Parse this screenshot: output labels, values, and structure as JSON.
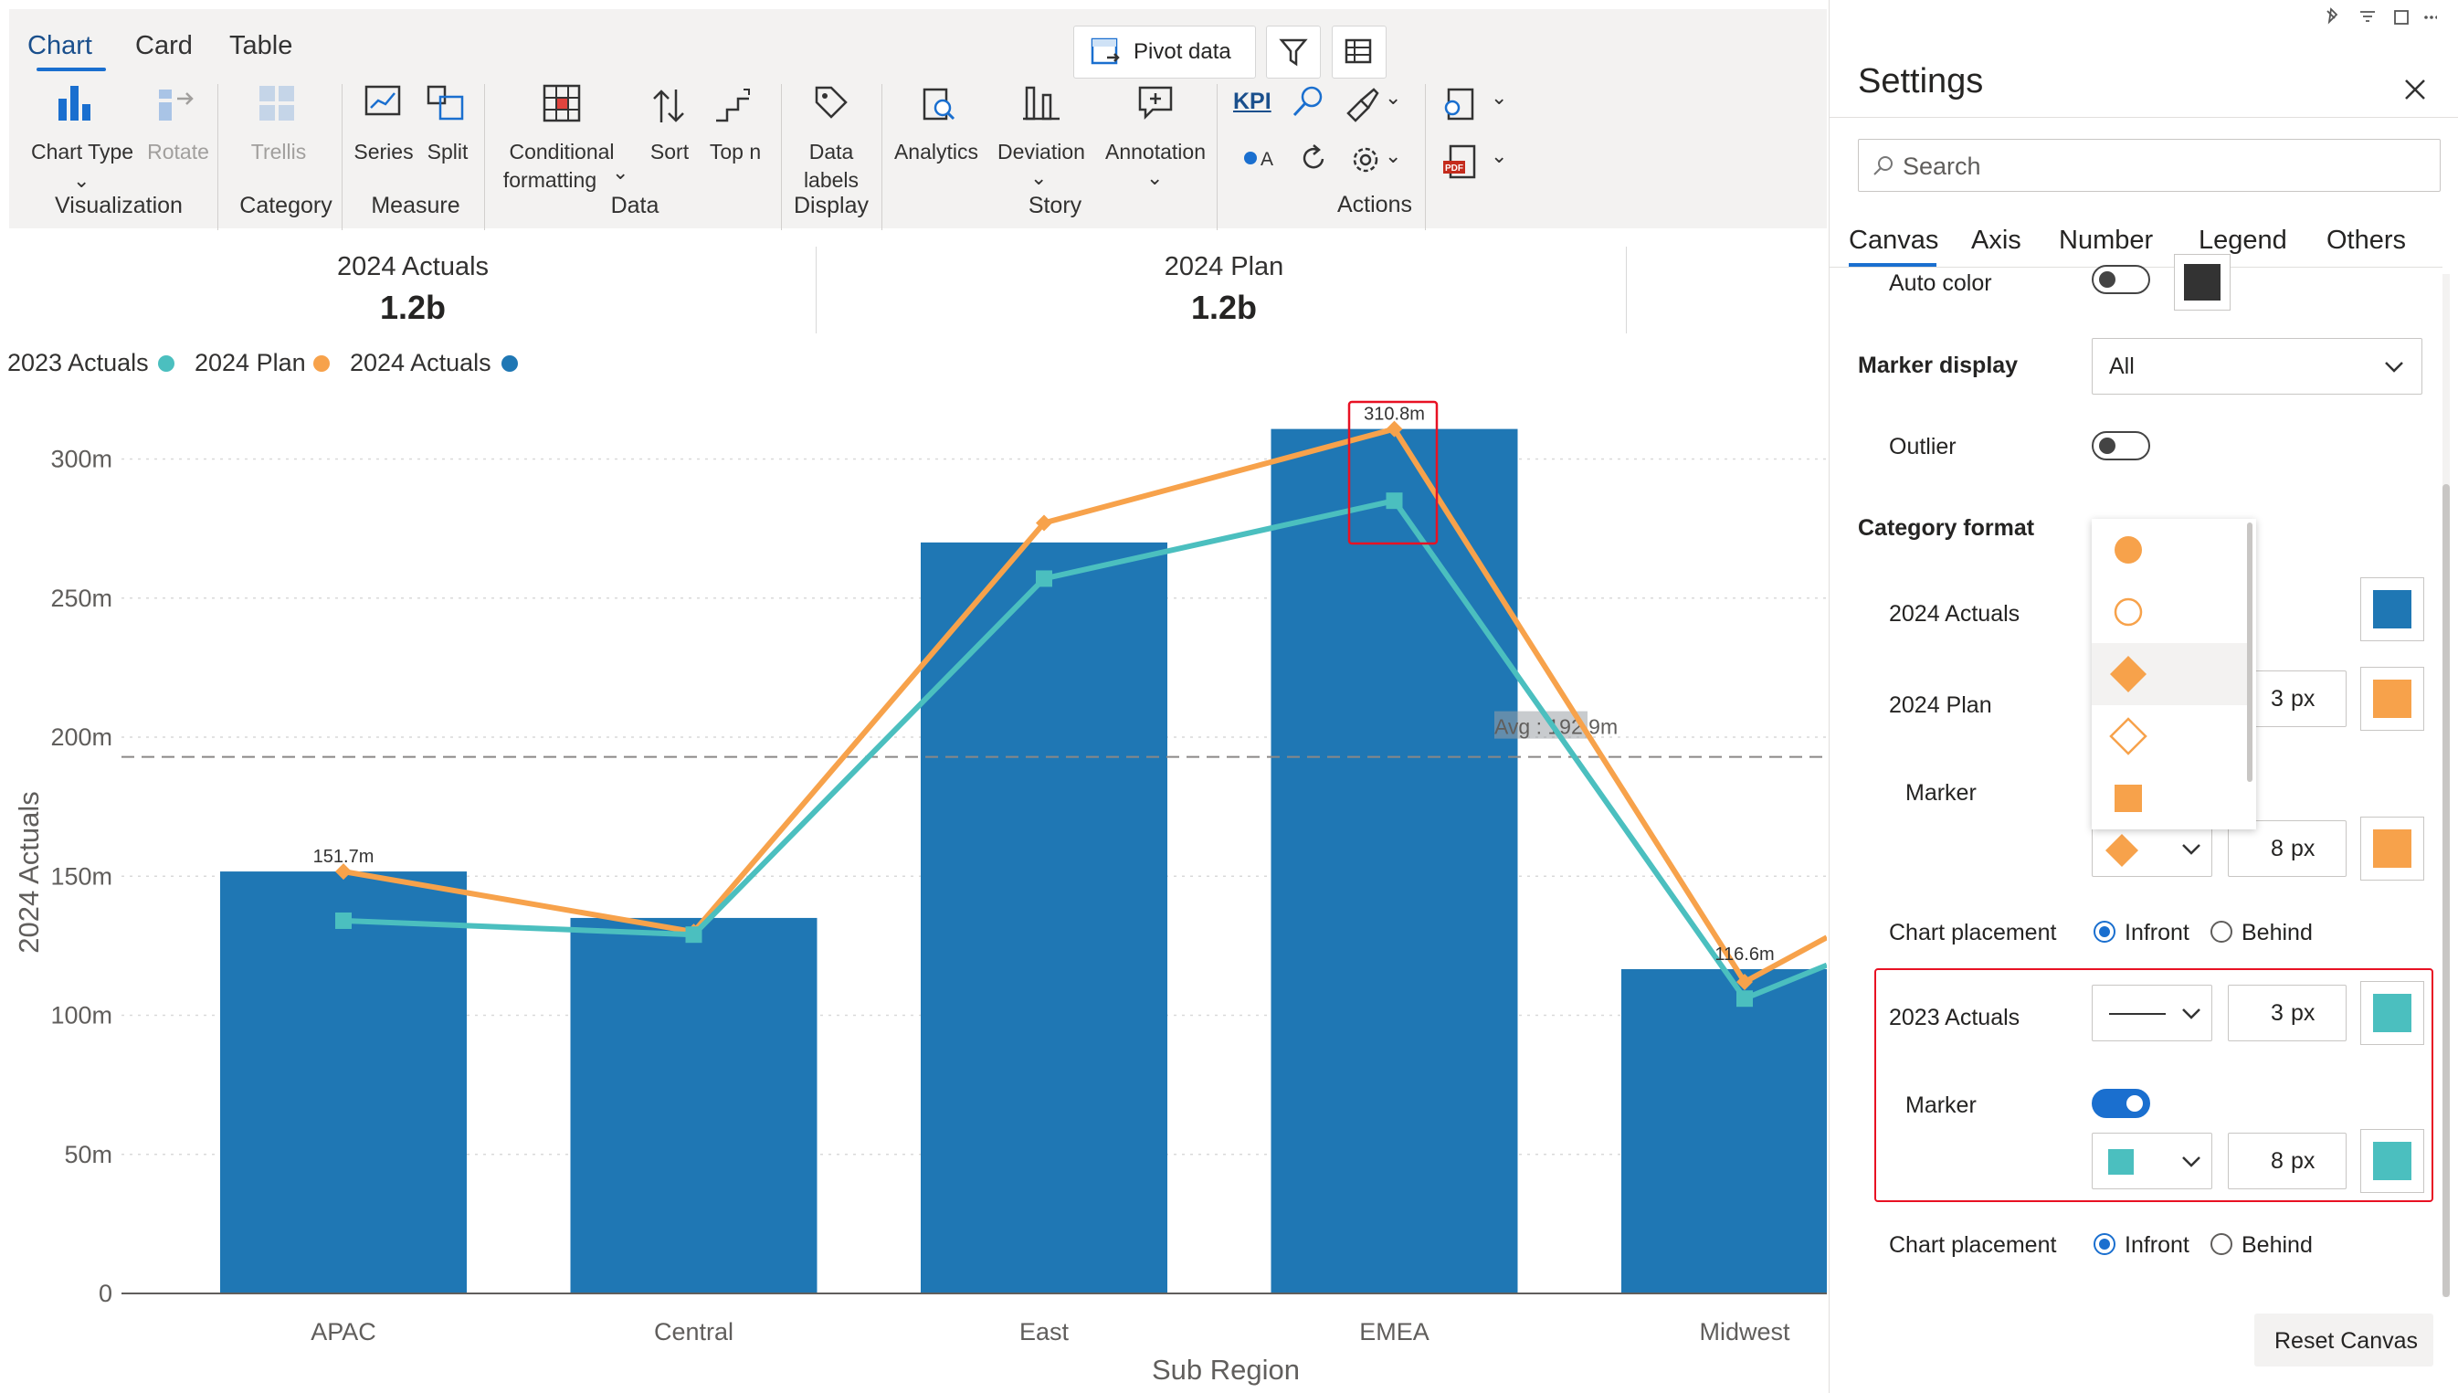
{
  "ribbon": {
    "tabs": [
      {
        "label": "Chart"
      },
      {
        "label": "Card"
      },
      {
        "label": "Table"
      }
    ],
    "pivot_label": "Pivot data",
    "items": {
      "chart_type": "Chart Type",
      "rotate": "Rotate",
      "trellis": "Trellis",
      "series": "Series",
      "split": "Split",
      "conditional_1": "Conditional",
      "conditional_2": "formatting",
      "sort": "Sort",
      "top_n": "Top n",
      "data_labels_1": "Data",
      "data_labels_2": "labels",
      "analytics": "Analytics",
      "deviation": "Deviation",
      "annotation": "Annotation",
      "kpi": "KPI"
    },
    "groups": {
      "visualization": "Visualization",
      "category": "Category",
      "measure": "Measure",
      "data": "Data",
      "display": "Display",
      "story": "Story",
      "actions": "Actions"
    }
  },
  "kpis": [
    {
      "title": "2024 Actuals",
      "value": "1.2b"
    },
    {
      "title": "2024 Plan",
      "value": "1.2b"
    }
  ],
  "legend": [
    {
      "label": "2023 Actuals",
      "color": "#4bbfbf"
    },
    {
      "label": "2024 Plan",
      "color": "#f7a24b"
    },
    {
      "label": "2024 Actuals",
      "color": "#1f77b4"
    }
  ],
  "chart_data": {
    "type": "bar",
    "categories": [
      "APAC",
      "Central",
      "East",
      "EMEA",
      "Midwest"
    ],
    "ylabel": "2024 Actuals",
    "xlabel": "Sub Region",
    "ylim": [
      0,
      320
    ],
    "yticks": [
      "0",
      "50m",
      "100m",
      "150m",
      "200m",
      "250m",
      "300m"
    ],
    "ytick_values": [
      0,
      50,
      100,
      150,
      200,
      250,
      300
    ],
    "series": [
      {
        "name": "2024 Actuals",
        "type": "bar",
        "color": "#1f77b4",
        "values": [
          151.7,
          135,
          270,
          310.8,
          116.6
        ]
      },
      {
        "name": "2024 Plan",
        "type": "line",
        "color": "#f7a24b",
        "marker": "diamond",
        "values": [
          151.7,
          130,
          277,
          310.8,
          112
        ]
      },
      {
        "name": "2023 Actuals",
        "type": "line",
        "color": "#4bbfbf",
        "marker": "square",
        "values": [
          134,
          129,
          257,
          285,
          106
        ]
      }
    ],
    "data_labels": [
      {
        "category": "APAC",
        "text": "151.7m",
        "value": 151.7
      },
      {
        "category": "EMEA",
        "text": "310.8m",
        "value": 310.8
      },
      {
        "category": "Midwest",
        "text": "116.6m",
        "value": 116.6
      }
    ],
    "average": {
      "value": 192.9,
      "label": "Avg : 192.9m"
    }
  },
  "settings": {
    "title": "Settings",
    "search_placeholder": "Search",
    "tabs": [
      {
        "label": "Canvas"
      },
      {
        "label": "Axis"
      },
      {
        "label": "Number"
      },
      {
        "label": "Legend"
      },
      {
        "label": "Others"
      }
    ],
    "auto_color": "Auto color",
    "marker_display": "Marker display",
    "marker_display_value": "All",
    "outlier": "Outlier",
    "category_format": "Category format",
    "row_2024_actuals": "2024 Actuals",
    "row_2024_plan": "2024 Plan",
    "plan_width": "3",
    "marker": "Marker",
    "plan_marker_size": "8",
    "px": "px",
    "chart_placement": "Chart placement",
    "infront": "Infront",
    "behind": "Behind",
    "row_2023_actuals": "2023 Actuals",
    "a23_width": "3",
    "a23_marker": "Marker",
    "a23_marker_size": "8",
    "chart_placement_2": "Chart placement",
    "infront_2": "Infront",
    "behind_2": "Behind",
    "reset": "Reset Canvas",
    "marker_options": [
      "filled-circle",
      "hollow-circle",
      "filled-diamond",
      "hollow-diamond",
      "filled-square"
    ]
  }
}
